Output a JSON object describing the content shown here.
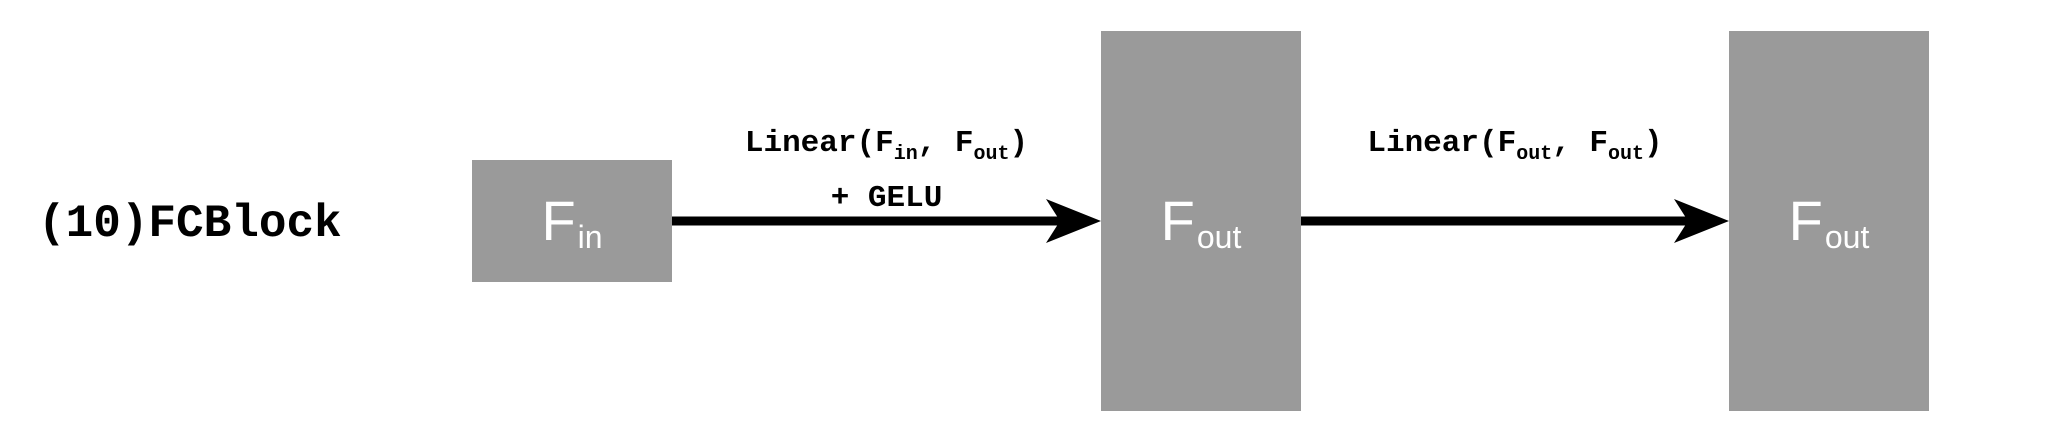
{
  "block_title": "(10)FCBlock",
  "nodes": [
    {
      "main": "F",
      "sub": "in"
    },
    {
      "main": "F",
      "sub": "out"
    },
    {
      "main": "F",
      "sub": "out"
    }
  ],
  "edges": [
    {
      "func": "Linear(F",
      "arg1_sub": "in",
      "sep": ", F",
      "arg2_sub": "out",
      "close": ")",
      "extra": "+ GELU"
    },
    {
      "func": "Linear(F",
      "arg1_sub": "out",
      "sep": ", F",
      "arg2_sub": "out",
      "close": ")"
    }
  ],
  "colors": {
    "box_fill": "#9a9a9a",
    "box_text": "#ffffff",
    "arrow": "#000000",
    "text": "#000000"
  }
}
